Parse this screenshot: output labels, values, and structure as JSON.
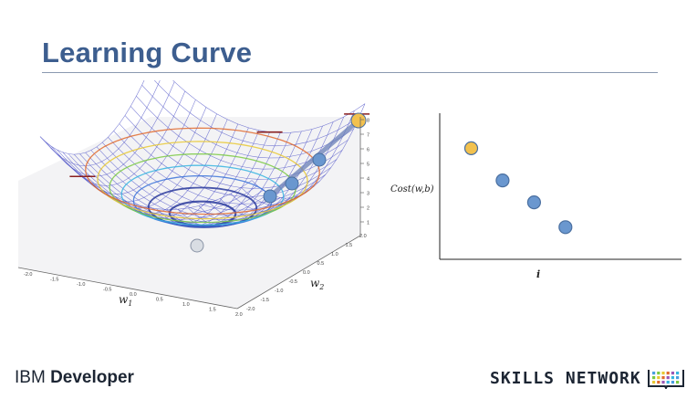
{
  "slide": {
    "title": "Learning Curve"
  },
  "surface_plot": {
    "w1_label": "w",
    "w1_sub": "1",
    "w2_label": "w",
    "w2_sub": "2",
    "w1_ticks": [
      "-2.0",
      "-1.5",
      "-1.0",
      "-0.5",
      "0.0",
      "0.5",
      "1.0",
      "1.5",
      "2.0"
    ],
    "w2_ticks": [
      "-2.0",
      "-1.5",
      "-1.0",
      "-0.5",
      "0.0",
      "0.5",
      "1.0",
      "1.5",
      "2.0"
    ],
    "z_ticks": [
      "1",
      "2",
      "3",
      "4",
      "5",
      "6",
      "7",
      "8"
    ],
    "points_color_start": "#f2c14e",
    "points_color": "#6a97cf",
    "point_min_color": "#d9dde3",
    "mesh_color": "#5055c8"
  },
  "cost_plot": {
    "ylabel": "Cost(w,b)",
    "xlabel": "i",
    "points": [
      {
        "i": 1,
        "cost": 0.76,
        "color": "#f2c14e"
      },
      {
        "i": 2,
        "cost": 0.54,
        "color": "#6a97cf"
      },
      {
        "i": 3,
        "cost": 0.39,
        "color": "#6a97cf"
      },
      {
        "i": 4,
        "cost": 0.22,
        "color": "#6a97cf"
      }
    ],
    "ylim": [
      0,
      1
    ],
    "xlim": [
      0,
      8
    ]
  },
  "footer": {
    "brand_prefix": "IBM",
    "brand_name": "Developer",
    "network": "SKILLS NETWORK"
  }
}
